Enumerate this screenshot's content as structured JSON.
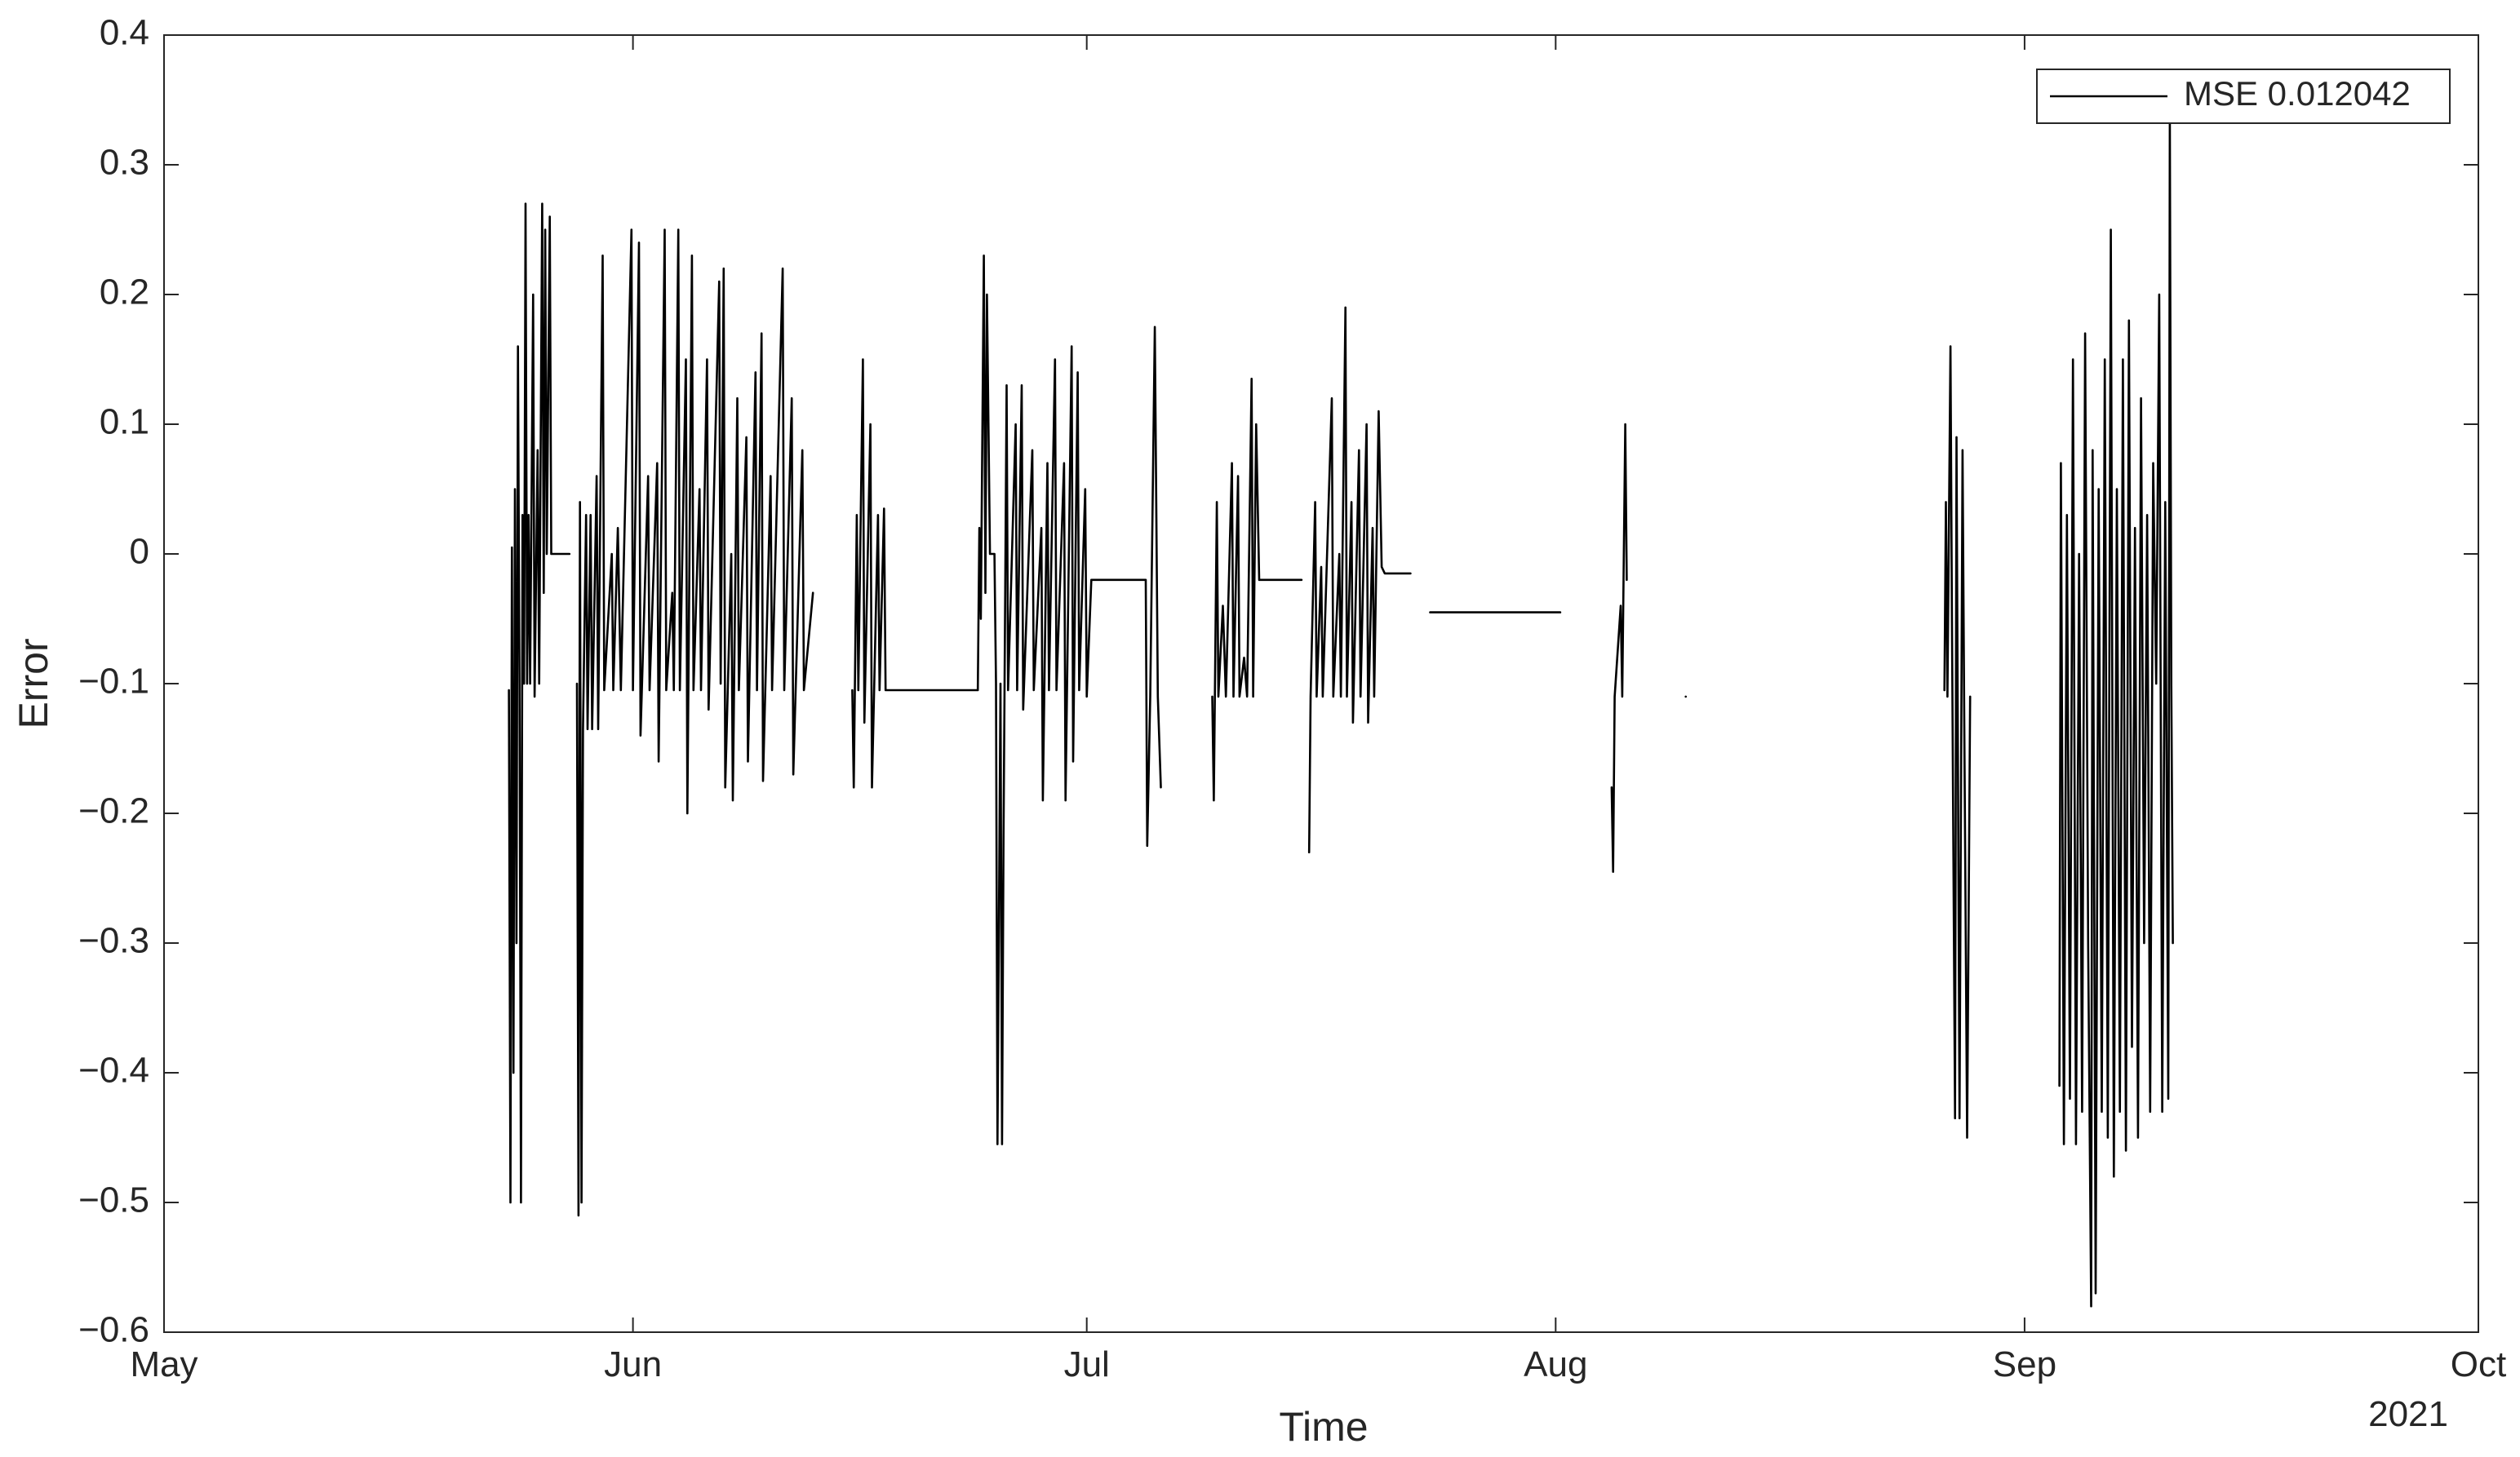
{
  "chart_data": {
    "type": "line",
    "x_label": "Time",
    "y_label": "Error",
    "x_secondary_label": "2021",
    "xlim": [
      0,
      153
    ],
    "xticks": [
      {
        "value": 0,
        "label": "May"
      },
      {
        "value": 31,
        "label": "Jun"
      },
      {
        "value": 61,
        "label": "Jul"
      },
      {
        "value": 92,
        "label": "Aug"
      },
      {
        "value": 123,
        "label": "Sep"
      },
      {
        "value": 153,
        "label": "Oct"
      }
    ],
    "ylim": [
      -0.6,
      0.4
    ],
    "yticks": [
      0.4,
      0.3,
      0.2,
      0.1,
      0,
      {
        "value": -0.1,
        "label": "−0.1"
      },
      {
        "value": -0.2,
        "label": "−0.2"
      },
      {
        "value": -0.3,
        "label": "−0.3"
      },
      {
        "value": -0.4,
        "label": "−0.4"
      },
      {
        "value": -0.5,
        "label": "−0.5"
      },
      {
        "value": -0.6,
        "label": "−0.6"
      }
    ],
    "legend": "upper right",
    "x": [
      22.8,
      22.9,
      23.0,
      23.1,
      23.2,
      23.3,
      23.4,
      23.5,
      23.6,
      23.7,
      23.8,
      23.9,
      24.0,
      24.1,
      24.2,
      24.4,
      24.5,
      24.7,
      24.8,
      25.0,
      25.1,
      25.2,
      25.3,
      25.5,
      25.6,
      26.8,
      null,
      27.3,
      27.4,
      27.5,
      27.6,
      27.7,
      27.9,
      28.0,
      28.2,
      28.3,
      28.6,
      28.7,
      29.0,
      29.1,
      29.6,
      29.7,
      30.0,
      30.2,
      30.9,
      31.0,
      31.4,
      31.5,
      32.0,
      32.1,
      32.6,
      32.7,
      33.1,
      33.2,
      33.6,
      33.7,
      34.0,
      34.1,
      34.5,
      34.6,
      34.9,
      35.0,
      35.4,
      35.5,
      35.9,
      36.0,
      36.7,
      36.8,
      37.0,
      37.1,
      37.5,
      37.6,
      37.9,
      38.0,
      38.5,
      38.6,
      39.1,
      39.2,
      39.5,
      39.6,
      40.1,
      40.2,
      40.9,
      41.0,
      41.5,
      41.6,
      42.2,
      42.3,
      42.9,
      null,
      45.5,
      45.6,
      45.8,
      45.9,
      46.2,
      46.3,
      46.7,
      46.8,
      47.2,
      47.3,
      47.6,
      47.7,
      48.4,
      53.8,
      53.9,
      54.0,
      54.2,
      54.3,
      54.4,
      54.6,
      54.9,
      55.0,
      55.1,
      55.3,
      55.4,
      55.5,
      55.7,
      55.8,
      56.3,
      56.4,
      56.7,
      56.8,
      57.4,
      57.5,
      58.0,
      58.1,
      58.4,
      58.5,
      58.9,
      59.0,
      59.5,
      59.6,
      60.0,
      60.1,
      60.4,
      60.5,
      60.9,
      61.0,
      61.3,
      64.9,
      65.0,
      65.2,
      65.5,
      65.7,
      65.9,
      null,
      69.3,
      69.4,
      69.6,
      69.7,
      70.0,
      70.2,
      70.6,
      70.7,
      71.0,
      71.1,
      71.4,
      71.6,
      71.9,
      72.0,
      72.2,
      72.4,
      75.2,
      null,
      75.7,
      75.8,
      76.1,
      76.2,
      76.5,
      76.6,
      77.2,
      77.3,
      77.7,
      77.8,
      78.1,
      78.2,
      78.5,
      78.6,
      79.0,
      79.1,
      79.5,
      79.6,
      79.9,
      80.0,
      80.3,
      80.5,
      80.7,
      82.4,
      null,
      83.7,
      92.3,
      null,
      95.7,
      95.8,
      95.9,
      96.3,
      96.4,
      96.6,
      96.7,
      null,
      100.6,
      null,
      117.7,
      117.8,
      117.9,
      118.1,
      118.2,
      118.4,
      118.5,
      118.7,
      118.9,
      119.0,
      119.2,
      119.4,
      null,
      125.3,
      125.4,
      125.6,
      125.8,
      126.0,
      126.2,
      126.4,
      126.6,
      126.8,
      127.0,
      127.2,
      127.4,
      127.5,
      127.7,
      127.9,
      128.1,
      128.3,
      128.5,
      128.7,
      128.9,
      129.1,
      129.3,
      129.5,
      129.7,
      129.9,
      130.1,
      130.3,
      130.5,
      130.7,
      130.9,
      131.1,
      131.3,
      131.5,
      131.7,
      131.9,
      132.1,
      132.3,
      132.5,
      132.6,
      132.7,
      132.8
    ],
    "series": [
      {
        "name": "MSE 0.012042",
        "color": "#000000",
        "values": [
          -0.105,
          -0.5,
          0.005,
          -0.4,
          0.05,
          -0.3,
          0.16,
          -0.1,
          -0.5,
          0.03,
          -0.1,
          0.27,
          -0.1,
          0.03,
          -0.1,
          0.2,
          -0.11,
          0.08,
          -0.1,
          0.27,
          -0.03,
          0.25,
          0.0,
          0.26,
          0.0,
          0.0,
          null,
          -0.1,
          -0.51,
          0.04,
          -0.5,
          -0.135,
          0.03,
          -0.135,
          0.03,
          -0.135,
          0.06,
          -0.135,
          0.23,
          -0.105,
          0.0,
          -0.105,
          0.02,
          -0.105,
          0.25,
          -0.105,
          0.24,
          -0.14,
          0.06,
          -0.105,
          0.07,
          -0.16,
          0.25,
          -0.105,
          -0.03,
          -0.105,
          0.25,
          -0.105,
          0.15,
          -0.2,
          0.23,
          -0.105,
          0.05,
          -0.105,
          0.15,
          -0.12,
          0.21,
          -0.1,
          0.22,
          -0.18,
          0.0,
          -0.19,
          0.12,
          -0.105,
          0.09,
          -0.16,
          0.14,
          -0.105,
          0.17,
          -0.175,
          0.06,
          -0.105,
          0.22,
          -0.105,
          0.12,
          -0.17,
          0.08,
          -0.105,
          -0.03,
          null,
          -0.105,
          -0.18,
          0.03,
          -0.105,
          0.15,
          -0.13,
          0.1,
          -0.18,
          0.03,
          -0.105,
          0.035,
          -0.105,
          -0.105,
          -0.105,
          0.02,
          -0.05,
          0.23,
          -0.03,
          0.2,
          0.0,
          0.0,
          -0.1,
          -0.455,
          -0.1,
          -0.455,
          -0.22,
          0.13,
          -0.105,
          0.1,
          -0.105,
          0.13,
          -0.12,
          0.08,
          -0.105,
          0.02,
          -0.19,
          0.07,
          -0.105,
          0.15,
          -0.105,
          0.07,
          -0.19,
          0.16,
          -0.16,
          0.14,
          -0.105,
          0.05,
          -0.11,
          -0.02,
          -0.02,
          -0.225,
          -0.11,
          0.175,
          -0.11,
          -0.18,
          null,
          -0.11,
          -0.19,
          0.04,
          -0.11,
          -0.04,
          -0.11,
          0.07,
          -0.11,
          0.06,
          -0.11,
          -0.08,
          -0.11,
          0.135,
          -0.11,
          0.1,
          -0.02,
          -0.02,
          null,
          -0.23,
          -0.11,
          0.04,
          -0.11,
          -0.01,
          -0.11,
          0.12,
          -0.11,
          0.0,
          -0.11,
          0.19,
          -0.11,
          0.04,
          -0.13,
          0.08,
          -0.11,
          0.1,
          -0.13,
          0.02,
          -0.11,
          0.11,
          -0.01,
          -0.015,
          -0.015,
          null,
          -0.045,
          -0.045,
          null,
          -0.18,
          -0.245,
          -0.11,
          -0.04,
          -0.11,
          0.1,
          -0.02,
          null,
          -0.11,
          null,
          -0.105,
          0.04,
          -0.11,
          0.16,
          -0.05,
          -0.435,
          0.09,
          -0.435,
          0.08,
          -0.11,
          -0.45,
          -0.11,
          null,
          -0.41,
          0.07,
          -0.455,
          0.03,
          -0.42,
          0.15,
          -0.455,
          0.0,
          -0.43,
          0.17,
          -0.3,
          -0.58,
          0.08,
          -0.57,
          0.05,
          -0.43,
          0.15,
          -0.45,
          0.25,
          -0.48,
          0.05,
          -0.43,
          0.15,
          -0.46,
          0.18,
          -0.38,
          0.02,
          -0.45,
          0.12,
          -0.3,
          0.03,
          -0.43,
          0.07,
          -0.1,
          0.2,
          -0.43,
          0.04,
          -0.42,
          0.34,
          -0.1,
          -0.3
        ]
      }
    ]
  }
}
